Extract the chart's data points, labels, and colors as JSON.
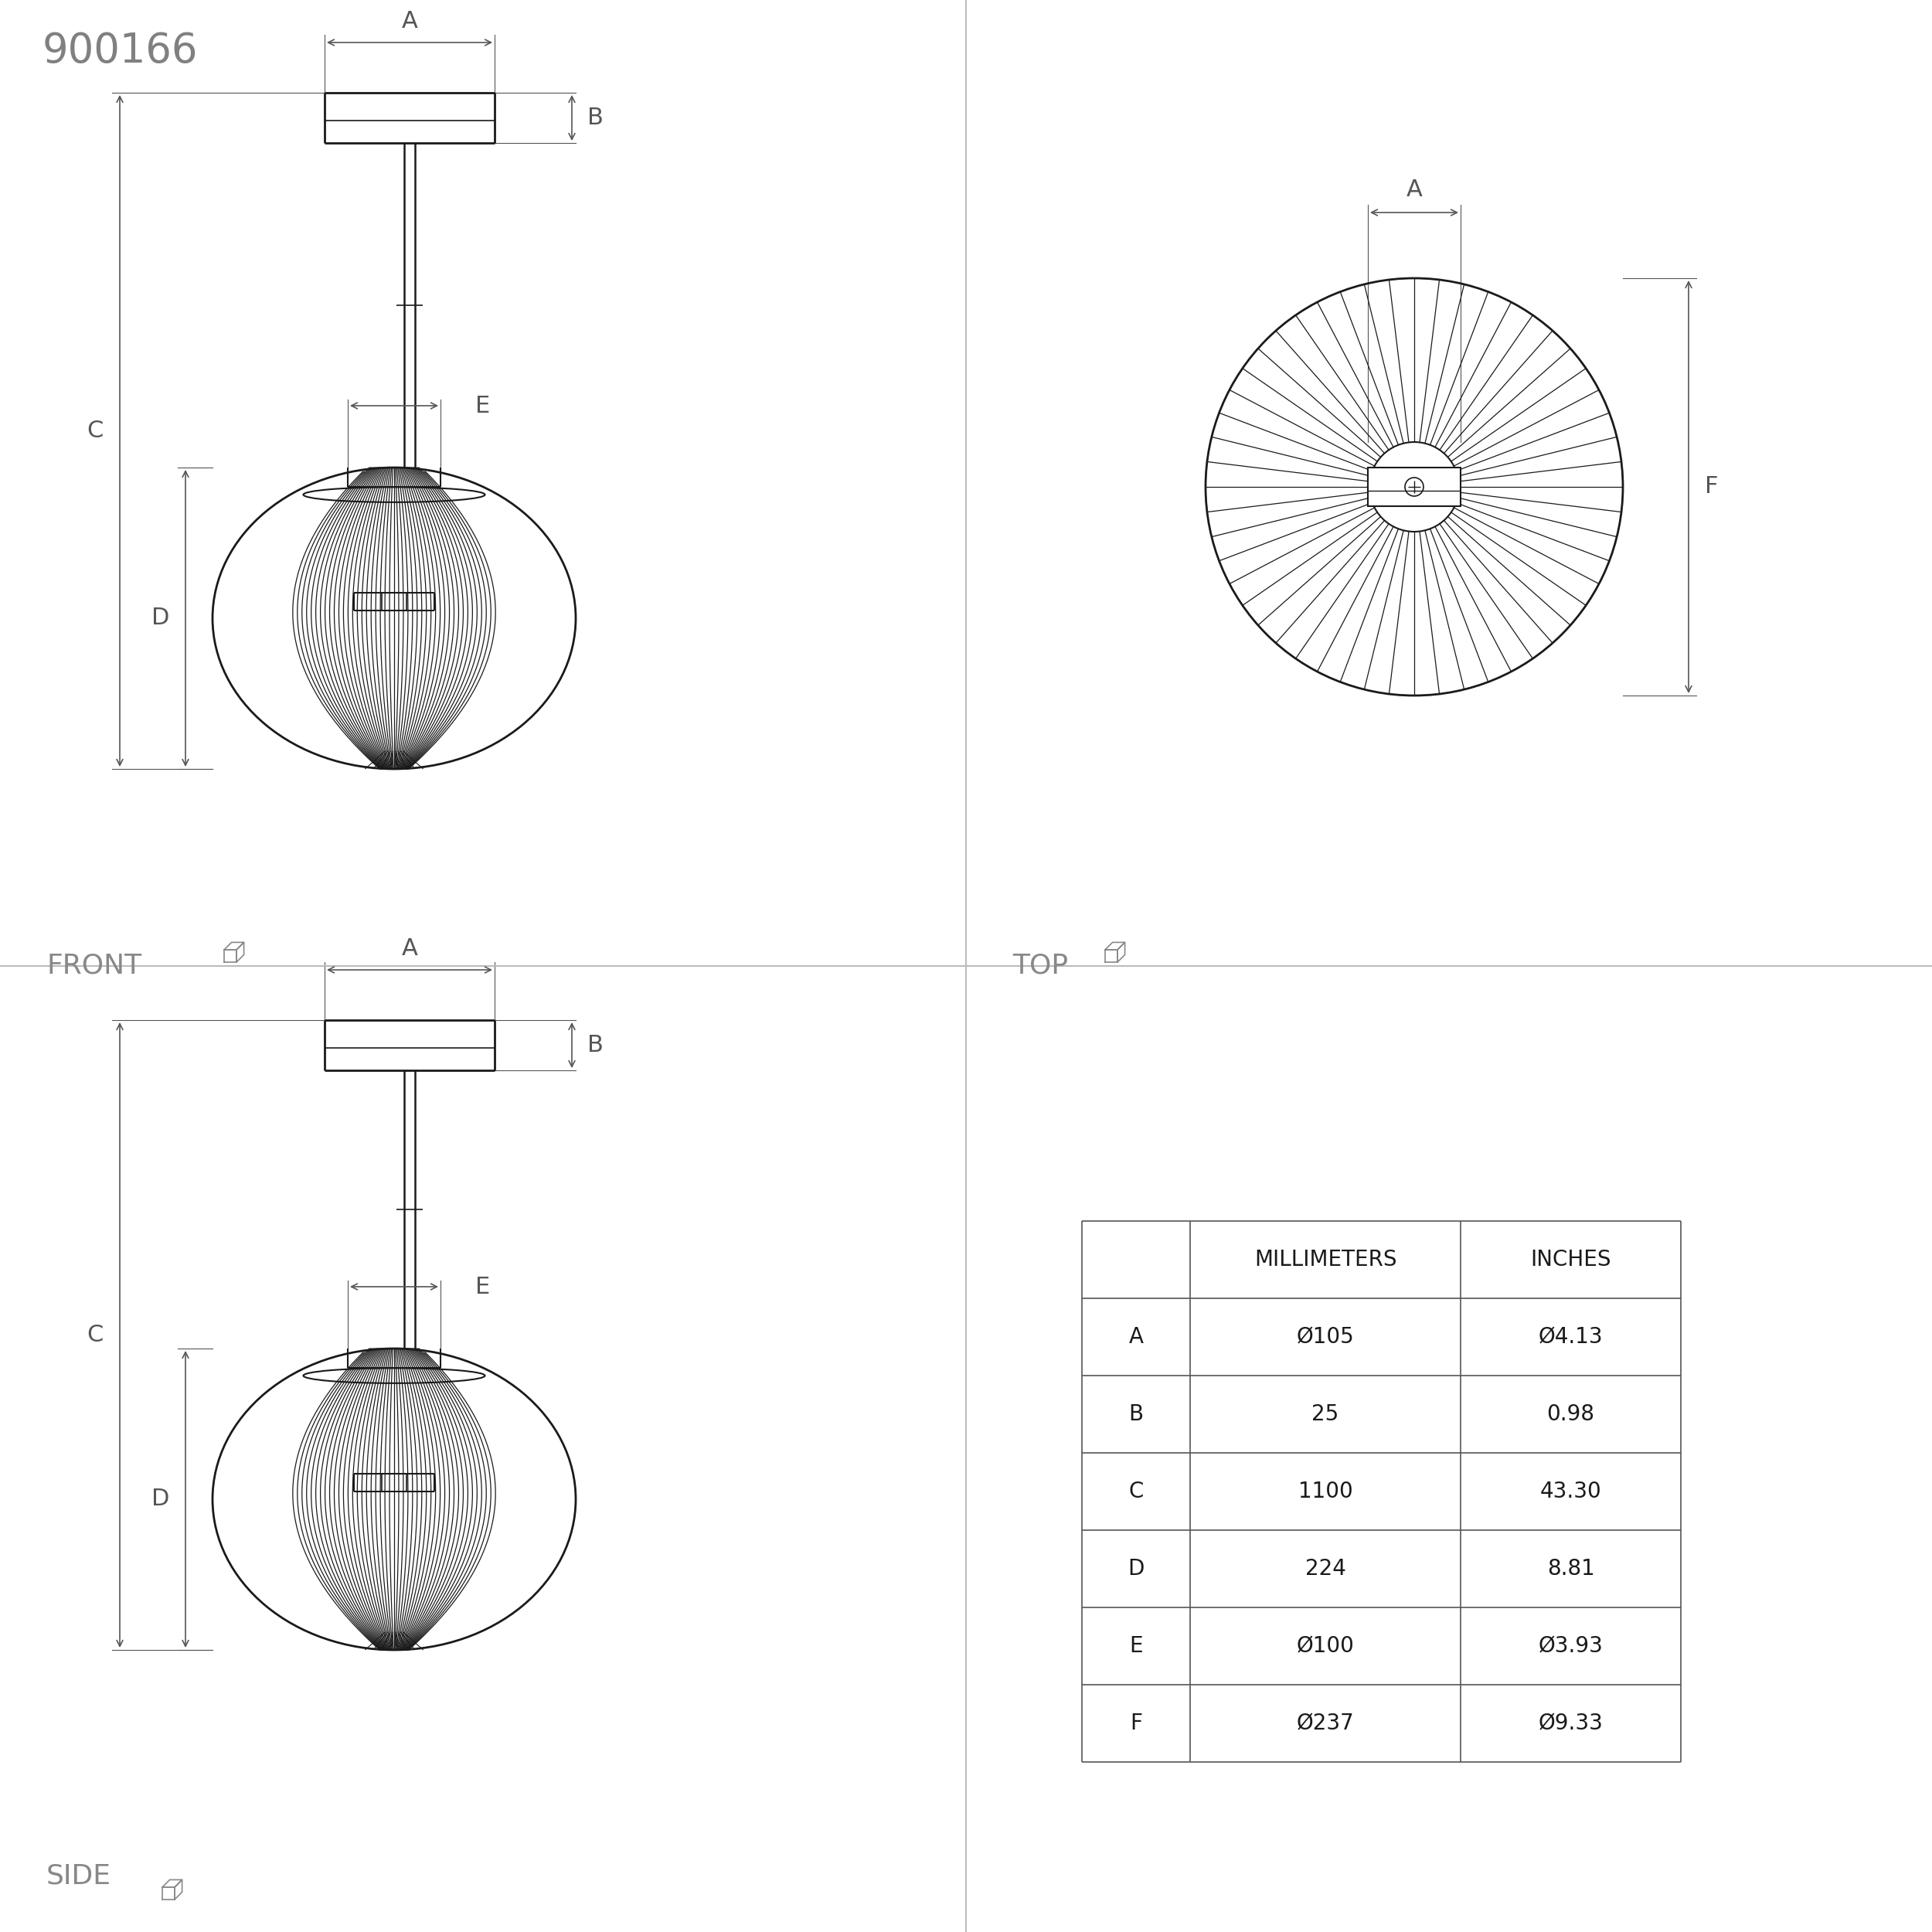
{
  "title": "900166",
  "title_color": "#808080",
  "bg_color": "#ffffff",
  "line_color": "#1a1a1a",
  "dim_color": "#555555",
  "gray_color": "#888888",
  "divider_color": "#bbbbbb",
  "table_data": {
    "headers": [
      "",
      "MILLIMETERS",
      "INCHES"
    ],
    "rows": [
      [
        "A",
        "Ø105",
        "Ø4.13"
      ],
      [
        "B",
        "25",
        "0.98"
      ],
      [
        "C",
        "1100",
        "43.30"
      ],
      [
        "D",
        "224",
        "8.81"
      ],
      [
        "E",
        "Ø100",
        "Ø3.93"
      ],
      [
        "F",
        "Ø237",
        "Ø9.33"
      ]
    ]
  },
  "labels": {
    "front": "FRONT",
    "top": "TOP",
    "side": "SIDE"
  }
}
